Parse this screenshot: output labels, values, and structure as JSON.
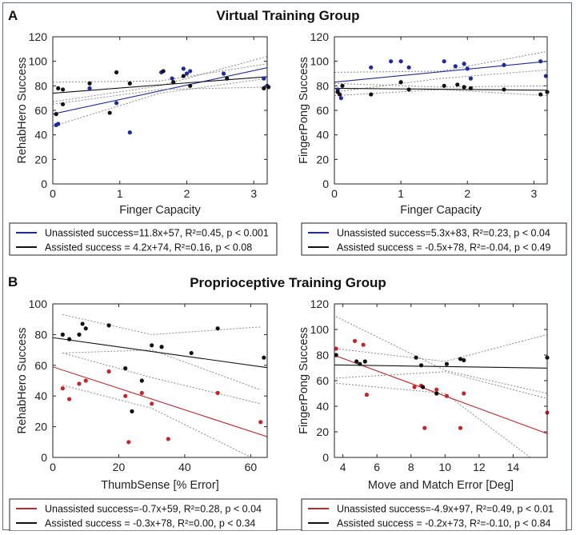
{
  "sections": [
    {
      "letter": "A",
      "title": "Virtual Training Group"
    },
    {
      "letter": "B",
      "title": "Proprioceptive Training Group"
    }
  ],
  "colors": {
    "blue": "#1f2a9e",
    "black": "#111111",
    "red": "#c4262a",
    "ci": "#8a8a8a"
  },
  "chart_data": [
    {
      "type": "scatter",
      "panel": "A-left",
      "xlabel": "Finger Capacity",
      "ylabel": "RehabHero Success",
      "xlim": [
        0,
        3.2
      ],
      "ylim": [
        0,
        120
      ],
      "xticks": [
        0,
        1,
        2,
        3
      ],
      "yticks": [
        0,
        20,
        40,
        60,
        80,
        100,
        120
      ],
      "series": [
        {
          "name": "Unassisted",
          "color": "#1f2a9e",
          "points": [
            [
              0.05,
              48
            ],
            [
              0.08,
              49
            ],
            [
              0.55,
              78
            ],
            [
              0.95,
              66
            ],
            [
              1.15,
              42
            ],
            [
              1.62,
              91
            ],
            [
              1.78,
              86
            ],
            [
              1.95,
              94
            ],
            [
              2.0,
              90
            ],
            [
              2.05,
              92
            ],
            [
              2.55,
              90
            ],
            [
              3.15,
              86
            ],
            [
              3.2,
              80
            ]
          ],
          "fit": [
            11.8,
            57
          ],
          "ci_top": [
            [
              0,
              67
            ],
            [
              1.6,
              80
            ],
            [
              3.2,
              104
            ]
          ],
          "ci_bot": [
            [
              0,
              47
            ],
            [
              1.6,
              74
            ],
            [
              3.2,
              86
            ]
          ]
        },
        {
          "name": "Assisted",
          "color": "#111111",
          "points": [
            [
              0.05,
              57
            ],
            [
              0.08,
              78
            ],
            [
              0.15,
              77
            ],
            [
              0.15,
              65
            ],
            [
              0.55,
              82
            ],
            [
              0.85,
              58
            ],
            [
              0.95,
              91
            ],
            [
              1.15,
              82
            ],
            [
              1.65,
              92
            ],
            [
              1.8,
              83
            ],
            [
              1.95,
              88
            ],
            [
              2.05,
              80
            ],
            [
              2.6,
              86
            ],
            [
              3.15,
              78
            ],
            [
              3.22,
              79
            ]
          ],
          "fit": [
            4.2,
            74
          ],
          "ci_top": [
            [
              0,
              83
            ],
            [
              1.6,
              84
            ],
            [
              3.2,
              98
            ]
          ],
          "ci_bot": [
            [
              0,
              65
            ],
            [
              1.6,
              77
            ],
            [
              3.2,
              79
            ]
          ]
        }
      ],
      "legend": [
        {
          "color": "#1f2a9e",
          "text": "Unassisted success=11.8x+57, R²=0.45, p < 0.001"
        },
        {
          "color": "#111111",
          "text": "Assisted success = 4.2x+74, R²=0.16, p < 0.08"
        }
      ]
    },
    {
      "type": "scatter",
      "panel": "A-right",
      "xlabel": "Finger Capacity",
      "ylabel": "FingerPong Success",
      "xlim": [
        0,
        3.2
      ],
      "ylim": [
        0,
        120
      ],
      "xticks": [
        0,
        1,
        2,
        3
      ],
      "yticks": [
        0,
        20,
        40,
        60,
        80,
        100,
        120
      ],
      "series": [
        {
          "name": "Unassisted",
          "color": "#1f2a9e",
          "points": [
            [
              0.05,
              77
            ],
            [
              0.1,
              70
            ],
            [
              0.55,
              95
            ],
            [
              0.85,
              100
            ],
            [
              1.0,
              100
            ],
            [
              1.12,
              95
            ],
            [
              1.65,
              100
            ],
            [
              1.82,
              96
            ],
            [
              1.95,
              98
            ],
            [
              2.0,
              94
            ],
            [
              2.05,
              86
            ],
            [
              2.55,
              97
            ],
            [
              3.1,
              100
            ],
            [
              3.18,
              88
            ]
          ],
          "fit": [
            5.3,
            83
          ],
          "ci_top": [
            [
              0,
              91
            ],
            [
              1.6,
              92
            ],
            [
              3.2,
              108
            ]
          ],
          "ci_bot": [
            [
              0,
              75
            ],
            [
              1.6,
              86
            ],
            [
              3.2,
              93
            ]
          ]
        },
        {
          "name": "Assisted",
          "color": "#111111",
          "points": [
            [
              0.05,
              75
            ],
            [
              0.08,
              73
            ],
            [
              0.12,
              80
            ],
            [
              0.55,
              73
            ],
            [
              1.0,
              83
            ],
            [
              1.12,
              77
            ],
            [
              1.65,
              80
            ],
            [
              1.85,
              81
            ],
            [
              1.95,
              79
            ],
            [
              2.05,
              78
            ],
            [
              2.55,
              77
            ],
            [
              3.1,
              73
            ],
            [
              3.2,
              75
            ]
          ],
          "fit": [
            -0.5,
            78
          ],
          "ci_top": [
            [
              0,
              82
            ],
            [
              1.6,
              79
            ],
            [
              3.2,
              80
            ]
          ],
          "ci_bot": [
            [
              0,
              72
            ],
            [
              1.6,
              77
            ],
            [
              3.2,
              72
            ]
          ]
        }
      ],
      "legend": [
        {
          "color": "#1f2a9e",
          "text": "Unassisted success=5.3x+83, R²=0.23, p < 0.04"
        },
        {
          "color": "#111111",
          "text": "Assisted success = -0.5x+78, R²=-0.04, p < 0.49"
        }
      ]
    },
    {
      "type": "scatter",
      "panel": "B-left",
      "xlabel": "ThumbSense [% Error]",
      "ylabel": "RehabHero Success",
      "xlim": [
        0,
        65
      ],
      "ylim": [
        0,
        100
      ],
      "xticks": [
        0,
        20,
        40,
        60
      ],
      "yticks": [
        0,
        20,
        40,
        60,
        80,
        100
      ],
      "series": [
        {
          "name": "Unassisted",
          "color": "#c4262a",
          "points": [
            [
              3,
              45
            ],
            [
              5,
              38
            ],
            [
              8,
              48
            ],
            [
              10,
              50
            ],
            [
              17,
              56
            ],
            [
              22,
              40
            ],
            [
              23,
              10
            ],
            [
              27,
              42
            ],
            [
              30,
              35
            ],
            [
              35,
              12
            ],
            [
              50,
              42
            ],
            [
              63,
              23
            ]
          ],
          "fit": [
            -0.7,
            59
          ],
          "ci_top": [
            [
              3,
              68
            ],
            [
              30,
              52
            ],
            [
              63,
              35
            ]
          ],
          "ci_bot": [
            [
              3,
              47
            ],
            [
              30,
              32
            ],
            [
              63,
              -3
            ]
          ]
        },
        {
          "name": "Assisted",
          "color": "#111111",
          "points": [
            [
              3,
              80
            ],
            [
              5,
              77
            ],
            [
              8,
              80
            ],
            [
              9,
              87
            ],
            [
              10,
              84
            ],
            [
              17,
              86
            ],
            [
              22,
              58
            ],
            [
              24,
              30
            ],
            [
              27,
              50
            ],
            [
              30,
              73
            ],
            [
              33,
              72
            ],
            [
              42,
              68
            ],
            [
              50,
              84
            ],
            [
              64,
              65
            ]
          ],
          "fit": [
            -0.3,
            78
          ],
          "ci_top": [
            [
              3,
              93
            ],
            [
              30,
              80
            ],
            [
              63,
              85
            ]
          ],
          "ci_bot": [
            [
              3,
              68
            ],
            [
              30,
              70
            ],
            [
              63,
              44
            ]
          ]
        }
      ],
      "legend": [
        {
          "color": "#c4262a",
          "text": "Unassisted success=-0.7x+59, R²=0.28, p < 0.04"
        },
        {
          "color": "#111111",
          "text": "Assisted success = -0.3x+78, R²=0.00, p < 0.34"
        }
      ]
    },
    {
      "type": "scatter",
      "panel": "B-right",
      "xlabel": "Move and Match Error [Deg]",
      "ylabel": "FingerPong Success",
      "xlim": [
        3.5,
        16
      ],
      "ylim": [
        0,
        120
      ],
      "xticks": [
        4,
        6,
        8,
        10,
        12,
        14
      ],
      "yticks": [
        0,
        20,
        40,
        60,
        80,
        100,
        120
      ],
      "series": [
        {
          "name": "Unassisted",
          "color": "#c4262a",
          "points": [
            [
              3.6,
              85
            ],
            [
              4.7,
              91
            ],
            [
              5.2,
              88
            ],
            [
              5.4,
              49
            ],
            [
              8.2,
              55
            ],
            [
              8.6,
              56
            ],
            [
              8.8,
              23
            ],
            [
              9.5,
              53
            ],
            [
              10.1,
              48
            ],
            [
              10.9,
              23
            ],
            [
              11.1,
              50
            ],
            [
              16,
              35
            ]
          ],
          "fit": [
            -4.9,
            97
          ],
          "ci_top": [
            [
              3.6,
              110
            ],
            [
              10,
              68
            ],
            [
              16,
              50
            ]
          ],
          "ci_bot": [
            [
              3.6,
              58
            ],
            [
              10,
              50
            ],
            [
              16,
              -10
            ]
          ]
        },
        {
          "name": "Assisted",
          "color": "#111111",
          "points": [
            [
              3.6,
              80
            ],
            [
              4.8,
              75
            ],
            [
              5.0,
              73
            ],
            [
              5.3,
              75
            ],
            [
              8.3,
              78
            ],
            [
              8.6,
              72
            ],
            [
              8.7,
              55
            ],
            [
              9.5,
              50
            ],
            [
              10.1,
              73
            ],
            [
              10.9,
              77
            ],
            [
              11.1,
              76
            ],
            [
              16,
              78
            ]
          ],
          "fit": [
            -0.2,
            73
          ],
          "ci_top": [
            [
              3.6,
              85
            ],
            [
              10,
              75
            ],
            [
              16,
              96
            ]
          ],
          "ci_bot": [
            [
              3.6,
              62
            ],
            [
              10,
              67
            ],
            [
              16,
              46
            ]
          ]
        }
      ],
      "legend": [
        {
          "color": "#c4262a",
          "text": "Unassisted success=-4.9x+97, R²=0.49, p < 0.01"
        },
        {
          "color": "#111111",
          "text": "Assisted success = -0.2x+73, R²=-0.10, p < 0.84"
        }
      ]
    }
  ]
}
